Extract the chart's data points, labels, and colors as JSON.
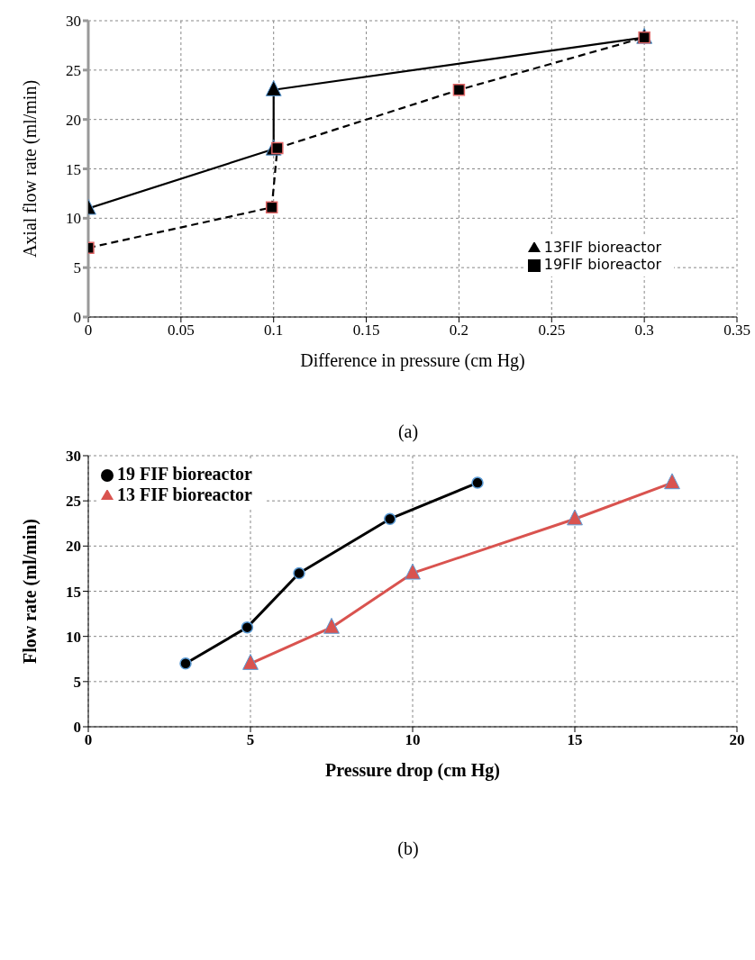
{
  "chart_data": [
    {
      "type": "line",
      "xlabel": "Difference in pressure (cm Hg)",
      "ylabel": "Axial flow rate (ml/min)",
      "xlim": [
        0,
        0.35
      ],
      "xticks": [
        0,
        0.05,
        0.1,
        0.15,
        0.2,
        0.25,
        0.3,
        0.35
      ],
      "ylim": [
        0,
        30
      ],
      "yticks": [
        0,
        5,
        10,
        15,
        20,
        25,
        30
      ],
      "grid": true,
      "legend": "right",
      "annotations": [
        "(a)"
      ],
      "series": [
        {
          "name": "13FIF bioreactor",
          "color": "#000000",
          "marker": "triangle",
          "line_style": "solid",
          "x": [
            0,
            0.1,
            0.1,
            0.3
          ],
          "values": [
            11,
            17,
            23,
            28.3
          ]
        },
        {
          "name": "19FIF bioreactor",
          "color": "#000000",
          "marker": "square",
          "line_style": "dashed",
          "x": [
            0,
            0.099,
            0.102,
            0.2,
            0.3
          ],
          "values": [
            7,
            11.1,
            17.1,
            23,
            28.3
          ]
        }
      ]
    },
    {
      "type": "line",
      "xlabel": "Pressure drop (cm Hg)",
      "ylabel": "Flow rate (ml/min)",
      "xlim": [
        0,
        20
      ],
      "xticks": [
        0,
        5,
        10,
        15,
        20
      ],
      "ylim": [
        0,
        30
      ],
      "yticks": [
        0,
        5,
        10,
        15,
        20,
        25,
        30
      ],
      "grid": true,
      "legend": "top left",
      "annotations": [
        "(b)"
      ],
      "series": [
        {
          "name": "19 FIF bioreactor",
          "color": "#000000",
          "marker": "circle",
          "line_style": "solid",
          "x": [
            3,
            4.9,
            6.5,
            9.3,
            12
          ],
          "values": [
            7,
            11,
            17,
            23,
            27
          ]
        },
        {
          "name": "13 FIF bioreactor",
          "color": "#d9534f",
          "marker": "triangle",
          "line_style": "solid",
          "x": [
            5,
            7.5,
            10,
            15,
            18
          ],
          "values": [
            7,
            11,
            17,
            23,
            27
          ]
        }
      ]
    }
  ]
}
